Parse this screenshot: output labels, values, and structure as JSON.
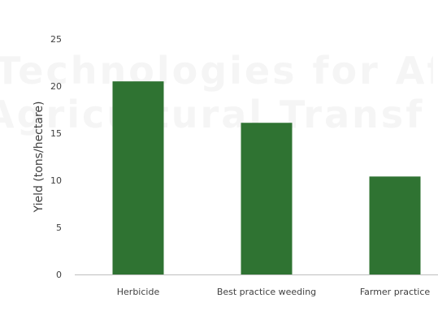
{
  "watermark": {
    "line1": "Technologies for Afri",
    "line2": "Agricultural Transforma"
  },
  "chart_data": {
    "type": "bar",
    "title": "",
    "xlabel": "",
    "ylabel": "Yield (tons/hectare)",
    "categories": [
      "Herbicide",
      "Best practice weeding",
      "Farmer practice"
    ],
    "values": [
      20.5,
      16.1,
      10.4
    ],
    "ylim": [
      0,
      25
    ],
    "yticks": [
      0,
      5,
      10,
      15,
      20,
      25
    ],
    "bar_color": "#2f7332",
    "axis_color": "#bfbfbf",
    "grid": false,
    "legend": "none"
  }
}
